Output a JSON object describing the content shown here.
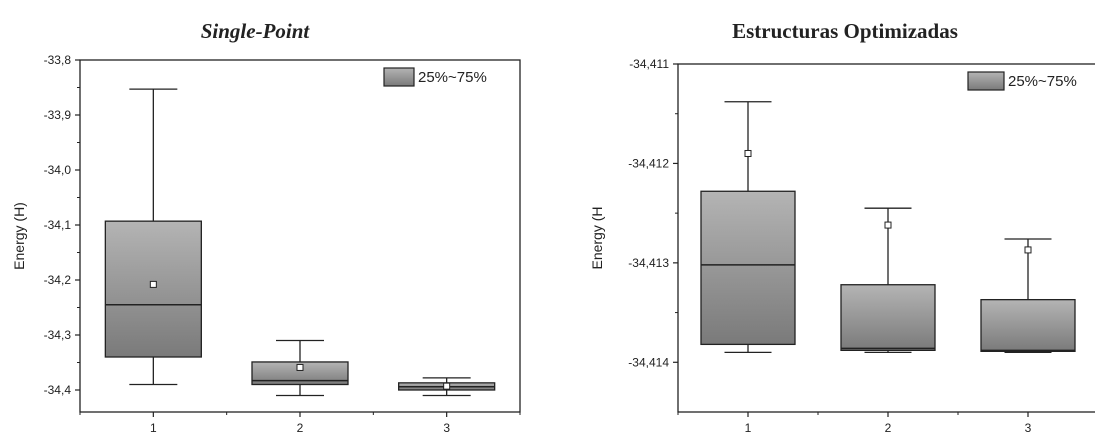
{
  "chart_data": [
    {
      "type": "box",
      "title": "Single-Point",
      "xlabel": "",
      "ylabel": "Energy (H)",
      "categories": [
        "1",
        "2",
        "3"
      ],
      "ylim": [
        -34.44,
        -33.8
      ],
      "yticks": [
        "-33,8",
        "-33,9",
        "-34,0",
        "-34,1",
        "-34,2",
        "-34,3",
        "-34,4"
      ],
      "yticks_values": [
        -33.8,
        -33.9,
        -34.0,
        -34.1,
        -34.2,
        -34.3,
        -34.4
      ],
      "legend": {
        "label": "25%~75%",
        "position": "top-right"
      },
      "boxes": [
        {
          "category": "1",
          "whisker_low": -34.39,
          "q1": -34.34,
          "median": -34.245,
          "q3": -34.093,
          "whisker_high": -33.853,
          "mean": -34.208
        },
        {
          "category": "2",
          "whisker_low": -34.41,
          "q1": -34.39,
          "median": -34.383,
          "q3": -34.349,
          "whisker_high": -34.31,
          "mean": -34.359
        },
        {
          "category": "3",
          "whisker_low": -34.41,
          "q1": -34.4,
          "median": -34.394,
          "q3": -34.387,
          "whisker_high": -34.378,
          "mean": -34.393
        }
      ],
      "colors": {
        "box_top": "#b4b4b4",
        "box_bottom": "#7a7a7a",
        "stroke": "#222222"
      }
    },
    {
      "type": "box",
      "title": "Estructuras Optimizadas",
      "xlabel": "",
      "ylabel": "Energy (H",
      "categories": [
        "1",
        "2",
        "3"
      ],
      "ylim": [
        -34.4145,
        -34.411
      ],
      "yticks": [
        "-34,411",
        "-34,412",
        "-34,413",
        "-34,414"
      ],
      "yticks_values": [
        -34.411,
        -34.412,
        -34.413,
        -34.414
      ],
      "legend": {
        "label": "25%~75%",
        "position": "top-right"
      },
      "boxes": [
        {
          "category": "1",
          "whisker_low": -34.4139,
          "q1": -34.41382,
          "median": -34.41302,
          "q3": -34.41228,
          "whisker_high": -34.41138,
          "mean": -34.4119
        },
        {
          "category": "2",
          "whisker_low": -34.4139,
          "q1": -34.41388,
          "median": -34.41386,
          "q3": -34.41322,
          "whisker_high": -34.41245,
          "mean": -34.41262
        },
        {
          "category": "3",
          "whisker_low": -34.4139,
          "q1": -34.41389,
          "median": -34.41388,
          "q3": -34.41337,
          "whisker_high": -34.41276,
          "mean": -34.41287
        }
      ],
      "colors": {
        "box_top": "#b4b4b4",
        "box_bottom": "#7a7a7a",
        "stroke": "#222222"
      }
    }
  ]
}
